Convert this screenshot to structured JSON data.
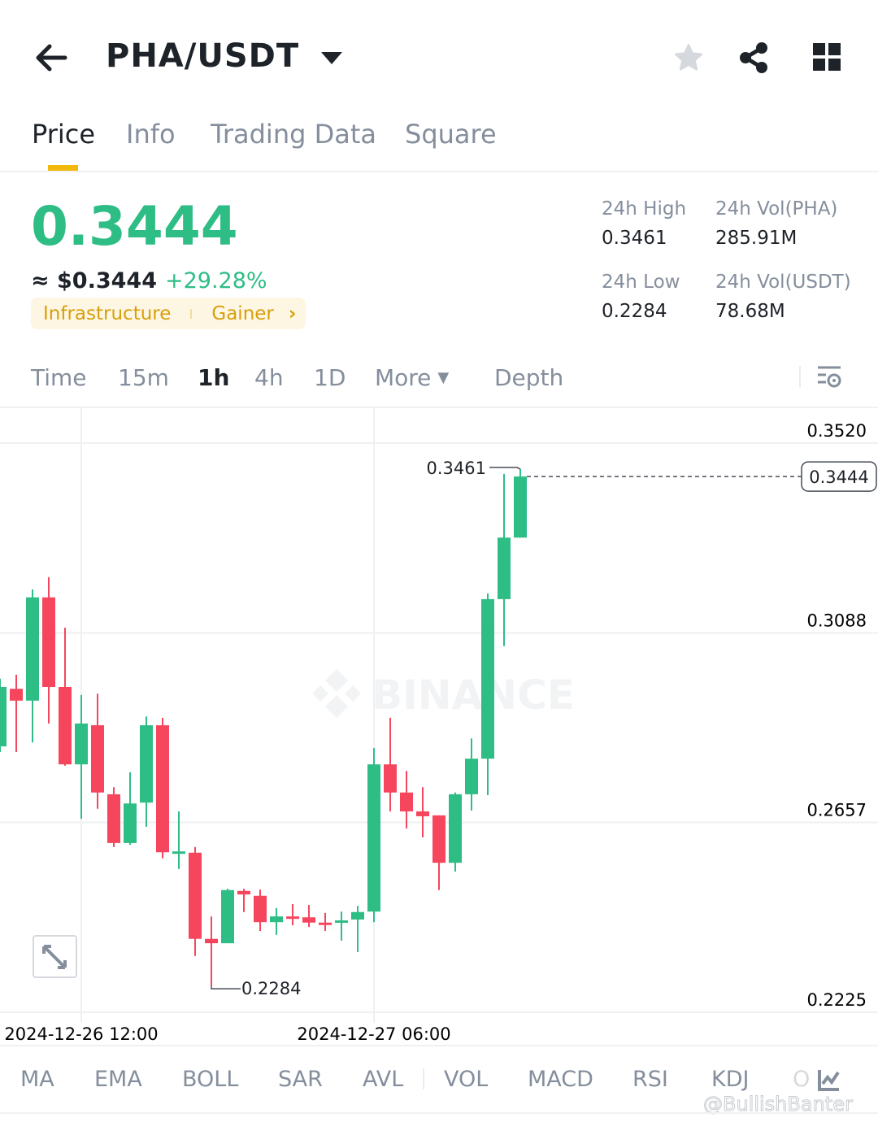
{
  "header": {
    "pair": "PHA/USDT",
    "icons": [
      "arrow-left-icon",
      "caret-down-icon",
      "star-icon",
      "share-icon",
      "grid-icon"
    ]
  },
  "tabs": [
    {
      "label": "Price"
    },
    {
      "label": "Info"
    },
    {
      "label": "Trading Data"
    },
    {
      "label": "Square"
    }
  ],
  "ticker": {
    "last_price": "0.3444",
    "usd_price": "≈ $0.3444",
    "change": "+29.28%",
    "tag1": "Infrastructure",
    "tag2": "Gainer",
    "high_label": "24h High",
    "high": "0.3461",
    "low_label": "24h Low",
    "low": "0.2284",
    "vol_base_label": "24h Vol(PHA)",
    "vol_base": "285.91M",
    "vol_quote_label": "24h Vol(USDT)",
    "vol_quote": "78.68M"
  },
  "timeframes": [
    {
      "label": "Time"
    },
    {
      "label": "15m"
    },
    {
      "label": "1h"
    },
    {
      "label": "4h"
    },
    {
      "label": "1D"
    },
    {
      "label": "More"
    },
    {
      "label": "Depth"
    }
  ],
  "colors": {
    "up": "#2ebd85",
    "down": "#f6465d",
    "accent": "#f0b90b"
  },
  "chart_data": {
    "type": "candlestick",
    "interval": "1h",
    "ylim": [
      0.2225,
      0.352
    ],
    "y_ticks": [
      "0.3520",
      "0.3088",
      "0.2657",
      "0.2225"
    ],
    "x_ticks": [
      {
        "label": "2024-12-26 12:00",
        "index": 5
      },
      {
        "label": "2024-12-27 06:00",
        "index": 23
      }
    ],
    "grid": true,
    "high_label": "0.3461",
    "low_label": "0.2284",
    "current_price": "0.3444",
    "watermark": "BINANCE",
    "ohlc": [
      [
        0.283,
        0.2984,
        0.2817,
        0.2965
      ],
      [
        0.2961,
        0.2993,
        0.2817,
        0.2934
      ],
      [
        0.2934,
        0.3187,
        0.2839,
        0.3169
      ],
      [
        0.3169,
        0.3215,
        0.2882,
        0.2965
      ],
      [
        0.2965,
        0.31,
        0.2786,
        0.2789
      ],
      [
        0.2789,
        0.2947,
        0.2665,
        0.2882
      ],
      [
        0.2878,
        0.295,
        0.2688,
        0.2725
      ],
      [
        0.2721,
        0.2737,
        0.2601,
        0.261
      ],
      [
        0.261,
        0.2771,
        0.2606,
        0.27
      ],
      [
        0.2702,
        0.2898,
        0.2647,
        0.2878
      ],
      [
        0.2878,
        0.2895,
        0.2575,
        0.2589
      ],
      [
        0.2586,
        0.2682,
        0.2551,
        0.2591
      ],
      [
        0.2588,
        0.2601,
        0.2353,
        0.2392
      ],
      [
        0.2392,
        0.2443,
        0.2284,
        0.2382
      ],
      [
        0.2382,
        0.2506,
        0.2382,
        0.2503
      ],
      [
        0.2501,
        0.2506,
        0.2453,
        0.2493
      ],
      [
        0.249,
        0.2504,
        0.241,
        0.243
      ],
      [
        0.243,
        0.2462,
        0.2401,
        0.2443
      ],
      [
        0.2443,
        0.2471,
        0.2423,
        0.244
      ],
      [
        0.2441,
        0.2469,
        0.2419,
        0.2429
      ],
      [
        0.2429,
        0.2451,
        0.241,
        0.2427
      ],
      [
        0.2432,
        0.2454,
        0.2388,
        0.2434
      ],
      [
        0.2436,
        0.2467,
        0.2362,
        0.2453
      ],
      [
        0.2454,
        0.2826,
        0.243,
        0.2789
      ],
      [
        0.2789,
        0.2895,
        0.2682,
        0.2725
      ],
      [
        0.2725,
        0.2774,
        0.2643,
        0.2682
      ],
      [
        0.2682,
        0.2737,
        0.2623,
        0.2671
      ],
      [
        0.2673,
        0.2673,
        0.2503,
        0.2565
      ],
      [
        0.2565,
        0.2725,
        0.2545,
        0.2721
      ],
      [
        0.2721,
        0.2848,
        0.2684,
        0.2802
      ],
      [
        0.2802,
        0.3178,
        0.2719,
        0.3165
      ],
      [
        0.3165,
        0.345,
        0.3058,
        0.3305
      ],
      [
        0.3305,
        0.3461,
        0.3305,
        0.3444
      ]
    ]
  },
  "indicators": [
    "MA",
    "EMA",
    "BOLL",
    "SAR",
    "AVL",
    "VOL",
    "MACD",
    "RSI",
    "KDJ",
    "O"
  ],
  "watermark_user": "@BullishBanter"
}
